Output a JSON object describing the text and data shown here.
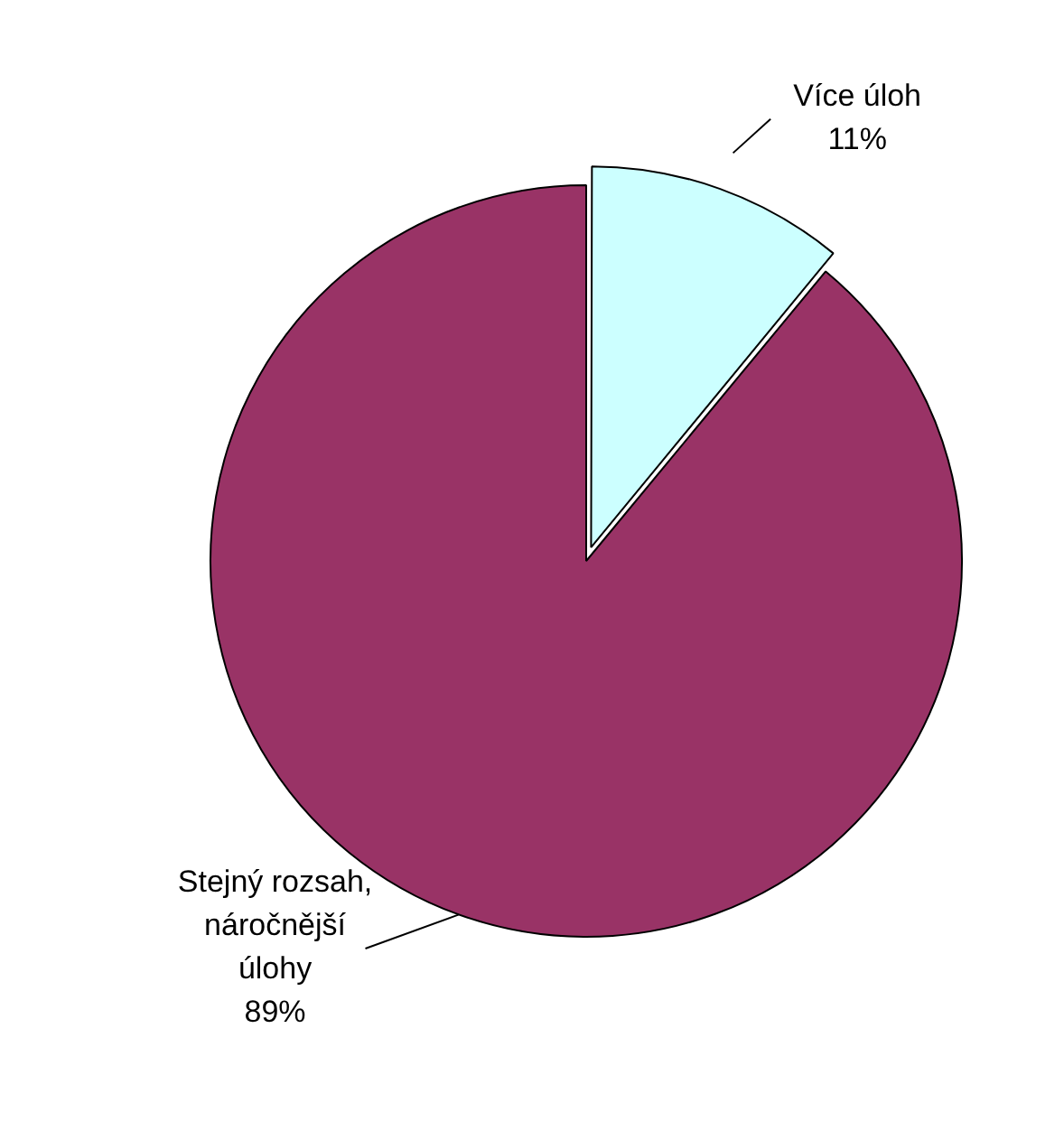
{
  "chart_data": {
    "type": "pie",
    "categories": [
      "Více úloh",
      "Stejný rozsah, náročnější úlohy"
    ],
    "values": [
      11,
      89
    ],
    "value_labels": [
      "11%",
      "89%"
    ],
    "colors": [
      "#ccffff",
      "#993366"
    ],
    "data_labels": true,
    "legend": false
  }
}
